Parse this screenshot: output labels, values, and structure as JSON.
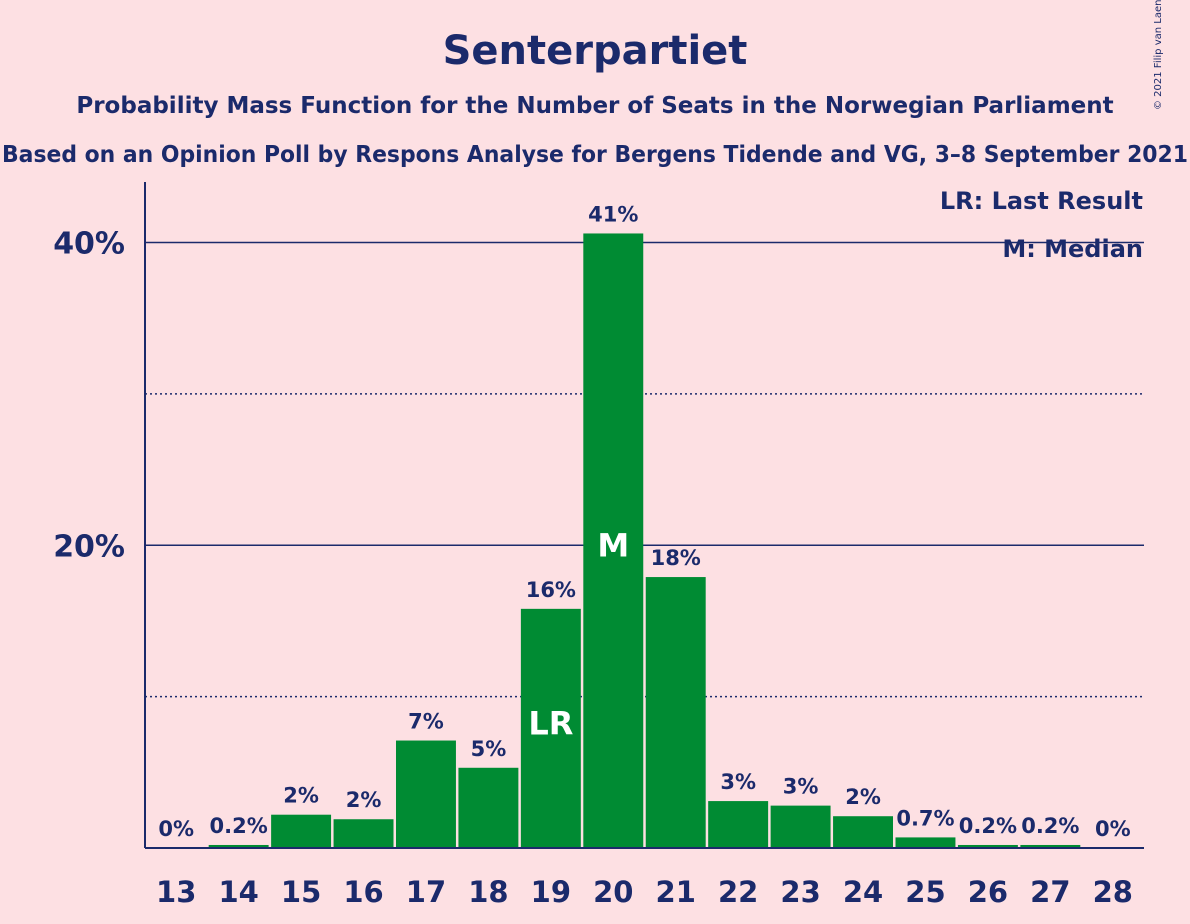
{
  "chart_data": {
    "type": "bar",
    "title": "Senterpartiet",
    "subtitle": "Probability Mass Function for the Number of Seats in the Norwegian Parliament",
    "subtitle2": "Based on an Opinion Poll by Respons Analyse for Bergens Tidende and VG, 3–8 September 2021",
    "copyright": "© 2021 Filip van Laenen",
    "categories": [
      "13",
      "14",
      "15",
      "16",
      "17",
      "18",
      "19",
      "20",
      "21",
      "22",
      "23",
      "24",
      "25",
      "26",
      "27",
      "28"
    ],
    "values": [
      0,
      0.2,
      2.2,
      1.9,
      7.1,
      5.3,
      15.8,
      40.6,
      17.9,
      3.1,
      2.8,
      2.1,
      0.7,
      0.2,
      0.2,
      0
    ],
    "data_labels": [
      "0%",
      "0.2%",
      "2%",
      "2%",
      "7%",
      "5%",
      "16%",
      "41%",
      "18%",
      "3%",
      "3%",
      "2%",
      "0.7%",
      "0.2%",
      "0.2%",
      "0%"
    ],
    "last_result_category": "19",
    "median_category": "20",
    "last_result_marker": "LR",
    "median_marker": "M",
    "ylim": [
      0,
      44
    ],
    "yticks": [
      {
        "value": 20,
        "label": "20%"
      },
      {
        "value": 40,
        "label": "40%"
      }
    ],
    "minor_gridlines": [
      10,
      30
    ],
    "legend": [
      "LR: Last Result",
      "M: Median"
    ],
    "legend_position": "top-right",
    "colors": {
      "bar": "#008b33",
      "background": "#fde0e3",
      "text": "#1b2a6b"
    }
  }
}
